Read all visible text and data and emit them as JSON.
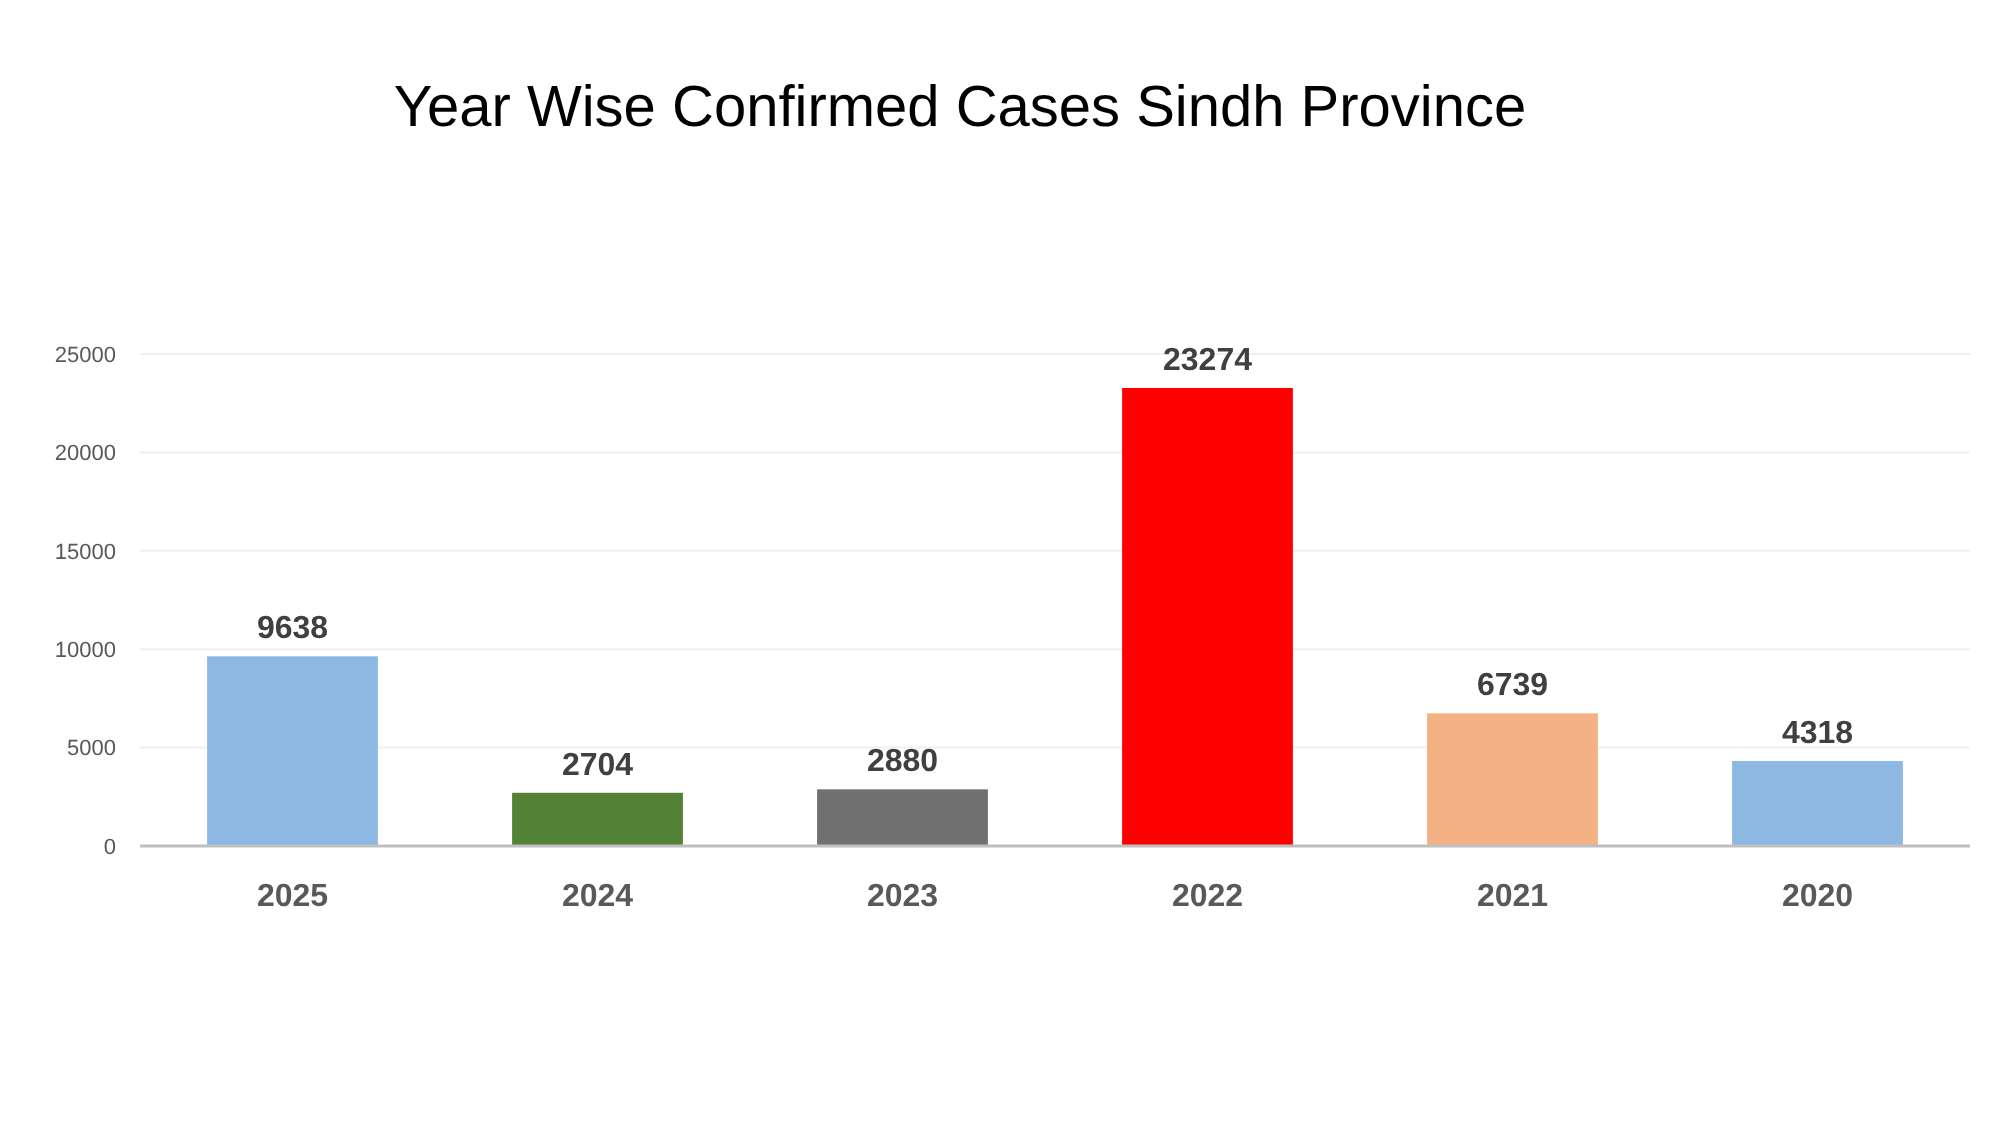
{
  "chart_data": {
    "type": "bar",
    "title": "Year Wise Confirmed Cases Sindh Province",
    "categories": [
      "2025",
      "2024",
      "2023",
      "2022",
      "2021",
      "2020"
    ],
    "values": [
      9638,
      2704,
      2880,
      23274,
      6739,
      4318
    ],
    "colors": [
      "#8db8e2",
      "#538135",
      "#707070",
      "#ff0000",
      "#f4b183",
      "#8db8e2"
    ],
    "ylim": [
      0,
      25000
    ],
    "yticks": [
      0,
      5000,
      10000,
      15000,
      20000,
      25000
    ],
    "grid": "y",
    "data_labels": true
  }
}
